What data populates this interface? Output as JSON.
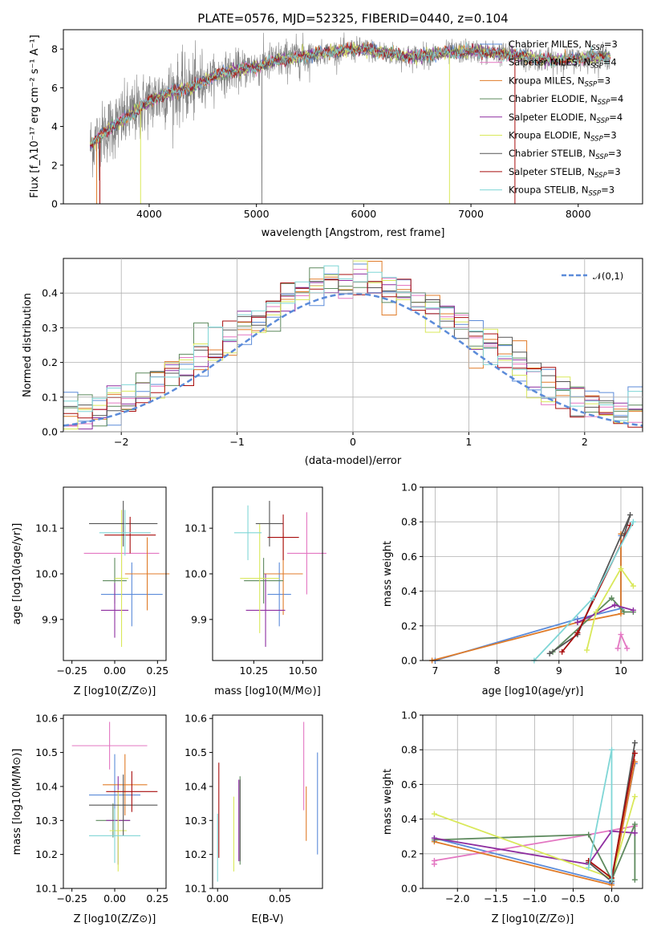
{
  "chart_data": [
    {
      "id": "spectrum",
      "type": "line",
      "title": "PLATE=0576, MJD=52325, FIBERID=0440, z=0.104",
      "xlabel": "wavelength [Angstrom, rest frame]",
      "ylabel": "Flux [f_λ10⁻¹⁷ erg cm⁻² s⁻¹ A⁻¹]",
      "xlim": [
        3200,
        8600
      ],
      "ylim": [
        0,
        9
      ],
      "xticks": [
        4000,
        5000,
        6000,
        7000,
        8000
      ],
      "yticks": [
        0,
        2,
        4,
        6,
        8
      ],
      "grid": false,
      "legend_position": "right",
      "data_color": "#808080",
      "envelope": {
        "wavelength": [
          3450,
          3600,
          3800,
          4000,
          4200,
          4400,
          4600,
          4800,
          5000,
          5200,
          5400,
          5600,
          5800,
          6000,
          6200,
          6400,
          6600,
          6800,
          7000,
          7200,
          7400,
          7600,
          7800,
          8000,
          8200,
          8300
        ],
        "flux": [
          3.0,
          3.8,
          4.5,
          5.3,
          5.8,
          6.0,
          6.6,
          6.9,
          7.1,
          7.4,
          7.6,
          7.8,
          7.9,
          8.0,
          7.8,
          7.6,
          7.7,
          7.8,
          7.9,
          7.8,
          7.7,
          7.5,
          7.4,
          7.5,
          7.6,
          7.6
        ]
      },
      "series": [
        {
          "name": "Chabrier MILES, N_SSP=3",
          "label_main": "Chabrier MILES, N",
          "label_sub": "SSP",
          "label_tail": "=3",
          "color": "#5b8bd9"
        },
        {
          "name": "Salpeter MILES, N_SSP=4",
          "label_main": "Salpeter MILES, N",
          "label_sub": "SSP",
          "label_tail": "=4",
          "color": "#e377c2"
        },
        {
          "name": "Kroupa MILES, N_SSP=3",
          "label_main": "Kroupa MILES, N",
          "label_sub": "SSP",
          "label_tail": "=3",
          "color": "#e07b28"
        },
        {
          "name": "Chabrier ELODIE, N_SSP=4",
          "label_main": "Chabrier ELODIE, N",
          "label_sub": "SSP",
          "label_tail": "=4",
          "color": "#5e8a5e"
        },
        {
          "name": "Salpeter ELODIE, N_SSP=4",
          "label_main": "Salpeter ELODIE, N",
          "label_sub": "SSP",
          "label_tail": "=4",
          "color": "#8e2ea0"
        },
        {
          "name": "Kroupa ELODIE, N_SSP=3",
          "label_main": "Kroupa ELODIE, N",
          "label_sub": "SSP",
          "label_tail": "=3",
          "color": "#d9e85a"
        },
        {
          "name": "Chabrier STELIB, N_SSP=3",
          "label_main": "Chabrier STELIB, N",
          "label_sub": "SSP",
          "label_tail": "=3",
          "color": "#555555"
        },
        {
          "name": "Salpeter STELIB, N_SSP=3",
          "label_main": "Salpeter STELIB, N",
          "label_sub": "SSP",
          "label_tail": "=3",
          "color": "#a80d0d"
        },
        {
          "name": "Kroupa STELIB, N_SSP=3",
          "label_main": "Kroupa STELIB, N",
          "label_sub": "SSP",
          "label_tail": "=3",
          "color": "#7fd6d6"
        }
      ]
    },
    {
      "id": "residuals",
      "type": "step",
      "xlabel": "(data-model)/error",
      "ylabel": "Normed distribution",
      "xlim": [
        -2.5,
        2.5
      ],
      "ylim": [
        0,
        0.5
      ],
      "xticks": [
        -2,
        -1,
        0,
        1,
        2
      ],
      "yticks": [
        0.0,
        0.1,
        0.2,
        0.3,
        0.4
      ],
      "grid": true,
      "legend_position": "top-right",
      "gaussian_label": "𝒩(0,1)",
      "gaussian_color": "#5b8bd9"
    },
    {
      "id": "age-vs-Z",
      "type": "errorbar",
      "xlabel": "Z [log10(Z/Z⊙)]",
      "ylabel": "age [log10(age/yr)]",
      "xlim": [
        -0.3,
        0.3
      ],
      "ylim": [
        9.81,
        10.19
      ],
      "xticks": [
        -0.25,
        0.0,
        0.25
      ],
      "yticks": [
        9.9,
        10.0,
        10.1
      ],
      "points": [
        {
          "x": 0.1,
          "xerr": 0.18,
          "y": 9.955,
          "yerr": 0.07,
          "color": "#5b8bd9"
        },
        {
          "x": 0.04,
          "xerr": 0.22,
          "y": 10.045,
          "yerr": 0.095,
          "color": "#e377c2"
        },
        {
          "x": 0.19,
          "xerr": 0.13,
          "y": 10.0,
          "yerr": 0.08,
          "color": "#e07b28"
        },
        {
          "x": 0.0,
          "xerr": 0.07,
          "y": 9.985,
          "yerr": 0.05,
          "color": "#5e8a5e"
        },
        {
          "x": 0.0,
          "xerr": 0.08,
          "y": 9.92,
          "yerr": 0.06,
          "color": "#8e2ea0"
        },
        {
          "x": 0.04,
          "xerr": 0.04,
          "y": 9.99,
          "yerr": 0.15,
          "color": "#d9e85a"
        },
        {
          "x": 0.05,
          "xerr": 0.2,
          "y": 10.11,
          "yerr": 0.05,
          "color": "#555555"
        },
        {
          "x": 0.09,
          "xerr": 0.15,
          "y": 10.085,
          "yerr": 0.04,
          "color": "#a80d0d"
        },
        {
          "x": 0.06,
          "xerr": 0.15,
          "y": 10.09,
          "yerr": 0.05,
          "color": "#7fd6d6"
        }
      ]
    },
    {
      "id": "age-vs-mass",
      "type": "errorbar",
      "xlabel": "mass [log10(M/M⊙)]",
      "ylabel": "",
      "xlim": [
        10.04,
        10.6
      ],
      "ylim": [
        9.81,
        10.19
      ],
      "xticks": [
        10.25,
        10.5
      ],
      "yticks": [
        9.9,
        10.0,
        10.1
      ],
      "points": [
        {
          "x": 10.38,
          "xerr": 0.06,
          "y": 9.955,
          "yerr": 0.07,
          "color": "#5b8bd9"
        },
        {
          "x": 10.52,
          "xerr": 0.1,
          "y": 10.045,
          "yerr": 0.09,
          "color": "#e377c2"
        },
        {
          "x": 10.4,
          "xerr": 0.1,
          "y": 10.0,
          "yerr": 0.09,
          "color": "#e07b28"
        },
        {
          "x": 10.3,
          "xerr": 0.1,
          "y": 9.985,
          "yerr": 0.05,
          "color": "#5e8a5e"
        },
        {
          "x": 10.31,
          "xerr": 0.1,
          "y": 9.92,
          "yerr": 0.08,
          "color": "#8e2ea0"
        },
        {
          "x": 10.28,
          "xerr": 0.1,
          "y": 9.99,
          "yerr": 0.12,
          "color": "#d9e85a"
        },
        {
          "x": 10.33,
          "xerr": 0.07,
          "y": 10.11,
          "yerr": 0.05,
          "color": "#555555"
        },
        {
          "x": 10.4,
          "xerr": 0.08,
          "y": 10.08,
          "yerr": 0.05,
          "color": "#a80d0d"
        },
        {
          "x": 10.22,
          "xerr": 0.07,
          "y": 10.09,
          "yerr": 0.06,
          "color": "#7fd6d6"
        }
      ]
    },
    {
      "id": "weight-vs-age",
      "type": "line",
      "xlabel": "age [log10(age/yr)]",
      "ylabel": "mass weight",
      "xlim": [
        6.8,
        10.35
      ],
      "ylim": [
        0,
        1
      ],
      "xticks": [
        7,
        8,
        9,
        10
      ],
      "yticks": [
        0.0,
        0.2,
        0.4,
        0.6,
        0.8,
        1.0
      ],
      "grid": true,
      "series": [
        {
          "color": "#5b8bd9",
          "points": [
            [
              7.0,
              0.0
            ],
            [
              9.3,
              0.24
            ],
            [
              10.0,
              0.3
            ],
            [
              10.0,
              0.72
            ]
          ]
        },
        {
          "color": "#e377c2",
          "points": [
            [
              9.95,
              0.07
            ],
            [
              10.0,
              0.15
            ],
            [
              10.1,
              0.07
            ]
          ]
        },
        {
          "color": "#e07b28",
          "points": [
            [
              6.95,
              0.0
            ],
            [
              9.3,
              0.22
            ],
            [
              10.0,
              0.27
            ],
            [
              10.0,
              0.73
            ]
          ]
        },
        {
          "color": "#5e8a5e",
          "points": [
            [
              8.9,
              0.05
            ],
            [
              9.85,
              0.36
            ],
            [
              10.05,
              0.28
            ],
            [
              10.2,
              0.28
            ]
          ]
        },
        {
          "color": "#8e2ea0",
          "points": [
            [
              9.3,
              0.22
            ],
            [
              9.9,
              0.32
            ],
            [
              10.2,
              0.29
            ]
          ]
        },
        {
          "color": "#d9e85a",
          "points": [
            [
              9.45,
              0.06
            ],
            [
              9.6,
              0.28
            ],
            [
              10.0,
              0.53
            ],
            [
              10.2,
              0.43
            ]
          ]
        },
        {
          "color": "#555555",
          "points": [
            [
              8.85,
              0.04
            ],
            [
              9.3,
              0.15
            ],
            [
              10.15,
              0.84
            ],
            [
              10.05,
              0.72
            ]
          ]
        },
        {
          "color": "#a80d0d",
          "points": [
            [
              9.05,
              0.05
            ],
            [
              9.3,
              0.16
            ],
            [
              10.15,
              0.78
            ]
          ]
        },
        {
          "color": "#7fd6d6",
          "points": [
            [
              8.6,
              0.0
            ],
            [
              9.55,
              0.36
            ],
            [
              10.2,
              0.8
            ]
          ]
        }
      ]
    },
    {
      "id": "mass-vs-Z",
      "type": "errorbar",
      "xlabel": "Z [log10(Z/Z⊙)]",
      "ylabel": "mass [log10(M/M⊙)]",
      "xlim": [
        -0.3,
        0.3
      ],
      "ylim": [
        10.1,
        10.61
      ],
      "xticks": [
        -0.25,
        0.0,
        0.25
      ],
      "yticks": [
        10.1,
        10.2,
        10.3,
        10.4,
        10.5,
        10.6
      ],
      "points": [
        {
          "x": 0.0,
          "xerr": 0.15,
          "y": 10.375,
          "yerr": 0.12,
          "color": "#5b8bd9"
        },
        {
          "x": -0.03,
          "xerr": 0.22,
          "y": 10.52,
          "yerr": 0.07,
          "color": "#e377c2"
        },
        {
          "x": 0.06,
          "xerr": 0.13,
          "y": 10.405,
          "yerr": 0.09,
          "color": "#e07b28"
        },
        {
          "x": -0.01,
          "xerr": 0.1,
          "y": 10.3,
          "yerr": 0.05,
          "color": "#5e8a5e"
        },
        {
          "x": 0.02,
          "xerr": 0.07,
          "y": 10.3,
          "yerr": 0.13,
          "color": "#8e2ea0"
        },
        {
          "x": 0.02,
          "xerr": 0.05,
          "y": 10.27,
          "yerr": 0.12,
          "color": "#d9e85a"
        },
        {
          "x": 0.05,
          "xerr": 0.2,
          "y": 10.345,
          "yerr": 0.09,
          "color": "#555555"
        },
        {
          "x": 0.1,
          "xerr": 0.15,
          "y": 10.385,
          "yerr": 0.06,
          "color": "#a80d0d"
        },
        {
          "x": 0.0,
          "xerr": 0.15,
          "y": 10.255,
          "yerr": 0.08,
          "color": "#7fd6d6"
        }
      ]
    },
    {
      "id": "mass-vs-EBV",
      "type": "errorbar",
      "xlabel": "E(B-V)",
      "ylabel": "",
      "xlim": [
        -0.004,
        0.084
      ],
      "ylim": [
        10.1,
        10.61
      ],
      "xticks": [
        0.0,
        0.05
      ],
      "yticks": [
        10.1,
        10.2,
        10.3,
        10.4,
        10.5,
        10.6
      ],
      "points": [
        {
          "x": 0.08,
          "y": 10.35,
          "yerr": 0.15,
          "color": "#5b8bd9"
        },
        {
          "x": 0.069,
          "y": 10.46,
          "yerr": 0.13,
          "color": "#e377c2"
        },
        {
          "x": 0.071,
          "y": 10.32,
          "yerr": 0.08,
          "color": "#e07b28"
        },
        {
          "x": 0.018,
          "y": 10.3,
          "yerr": 0.13,
          "color": "#5e8a5e"
        },
        {
          "x": 0.017,
          "y": 10.3,
          "yerr": 0.12,
          "color": "#8e2ea0"
        },
        {
          "x": 0.013,
          "y": 10.26,
          "yerr": 0.11,
          "color": "#d9e85a"
        },
        {
          "x": 0.018,
          "y": 10.3,
          "yerr": 0.12,
          "color": "#555555"
        },
        {
          "x": 0.001,
          "y": 10.33,
          "yerr": 0.14,
          "color": "#a80d0d"
        },
        {
          "x": 0.0,
          "y": 10.22,
          "yerr": 0.1,
          "color": "#7fd6d6"
        }
      ]
    },
    {
      "id": "weight-vs-Z",
      "type": "line",
      "xlabel": "Z [log10(Z/Z⊙)]",
      "ylabel": "mass weight",
      "xlim": [
        -2.45,
        0.4
      ],
      "ylim": [
        0,
        1
      ],
      "xticks": [
        -2.0,
        -1.5,
        -1.0,
        -0.5,
        0.0
      ],
      "yticks": [
        0.0,
        0.2,
        0.4,
        0.6,
        0.8,
        1.0
      ],
      "grid": true,
      "series": [
        {
          "color": "#5b8bd9",
          "points": [
            [
              -2.3,
              0.29
            ],
            [
              0.0,
              0.03
            ],
            [
              0.3,
              0.72
            ]
          ]
        },
        {
          "color": "#e377c2",
          "points": [
            [
              -2.3,
              0.14
            ],
            [
              -2.3,
              0.16
            ],
            [
              -0.3,
              0.31
            ],
            [
              0.3,
              0.36
            ]
          ]
        },
        {
          "color": "#e07b28",
          "points": [
            [
              -2.3,
              0.27
            ],
            [
              0.0,
              0.02
            ],
            [
              0.3,
              0.73
            ]
          ]
        },
        {
          "color": "#5e8a5e",
          "points": [
            [
              -2.3,
              0.28
            ],
            [
              -0.3,
              0.31
            ],
            [
              0.0,
              0.05
            ],
            [
              0.3,
              0.37
            ],
            [
              0.3,
              0.05
            ]
          ]
        },
        {
          "color": "#8e2ea0",
          "points": [
            [
              -2.3,
              0.29
            ],
            [
              -0.3,
              0.14
            ],
            [
              0.0,
              0.33
            ],
            [
              0.3,
              0.32
            ]
          ]
        },
        {
          "color": "#d9e85a",
          "points": [
            [
              -2.3,
              0.43
            ],
            [
              0.0,
              0.06
            ],
            [
              0.3,
              0.53
            ]
          ]
        },
        {
          "color": "#555555",
          "points": [
            [
              -0.3,
              0.15
            ],
            [
              0.0,
              0.04
            ],
            [
              0.3,
              0.84
            ]
          ]
        },
        {
          "color": "#a80d0d",
          "points": [
            [
              -0.3,
              0.16
            ],
            [
              0.0,
              0.06
            ],
            [
              0.3,
              0.78
            ]
          ]
        },
        {
          "color": "#7fd6d6",
          "points": [
            [
              -0.3,
              0.12
            ],
            [
              0.0,
              0.8
            ],
            [
              0.0,
              0.05
            ]
          ]
        }
      ]
    }
  ]
}
